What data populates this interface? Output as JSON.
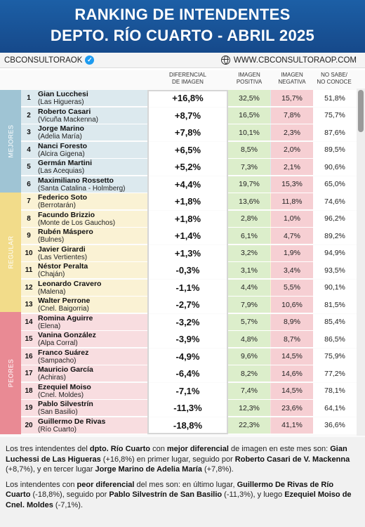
{
  "header": {
    "title_line1": "RANKING DE INTENDENTES",
    "title_line2": "DEPTO. RÍO CUARTO - ABRIL 2025"
  },
  "brand": {
    "left": "CBCONSULTORAOK",
    "right": "WWW.CBCONSULTORAOP.COM",
    "left_icon": "verified-check-icon",
    "right_icon": "globe-icon"
  },
  "columns": {
    "diff_l1": "DIFERENCIAL",
    "diff_l2": "DE IMAGEN",
    "pos_l1": "IMAGEN",
    "pos_l2": "POSITIVA",
    "neg_l1": "IMAGEN",
    "neg_l2": "NEGATIVA",
    "ns_l1": "NO SABE/",
    "ns_l2": "NO CONOCE"
  },
  "groups": {
    "mejores": "MEJORES",
    "regular": "REGULAR",
    "peores": "PEORES"
  },
  "colors": {
    "mejores": "#9fc4d4",
    "regular": "#f2dc8a",
    "peores": "#e98a94",
    "mejores_bg": "#dce9ee",
    "regular_bg": "#faf2d4",
    "peores_bg": "#f8dde0",
    "positive": "#dceecb",
    "negative": "#f6cfd3"
  },
  "rows": [
    {
      "rank": "1",
      "name": "Gian Lucchesi",
      "loc": "(Las Higueras)",
      "diff": "+16,8%",
      "pos": "32,5%",
      "neg": "15,7%",
      "ns": "51,8%"
    },
    {
      "rank": "2",
      "name": "Roberto Casari",
      "loc": "(Vicuña Mackenna)",
      "diff": "+8,7%",
      "pos": "16,5%",
      "neg": "7,8%",
      "ns": "75,7%"
    },
    {
      "rank": "3",
      "name": "Jorge Marino",
      "loc": "(Adelia María)",
      "diff": "+7,8%",
      "pos": "10,1%",
      "neg": "2,3%",
      "ns": "87,6%"
    },
    {
      "rank": "4",
      "name": "Nanci Foresto",
      "loc": "(Alcira Gigena)",
      "diff": "+6,5%",
      "pos": "8,5%",
      "neg": "2,0%",
      "ns": "89,5%"
    },
    {
      "rank": "5",
      "name": "Germán Martini",
      "loc": "(Las Acequias)",
      "diff": "+5,2%",
      "pos": "7,3%",
      "neg": "2,1%",
      "ns": "90,6%"
    },
    {
      "rank": "6",
      "name": "Maximiliano Rossetto",
      "loc": "(Santa Catalina - Holmberg)",
      "diff": "+4,4%",
      "pos": "19,7%",
      "neg": "15,3%",
      "ns": "65,0%"
    },
    {
      "rank": "7",
      "name": "Federico Soto",
      "loc": "(Berrotarán)",
      "diff": "+1,8%",
      "pos": "13,6%",
      "neg": "11,8%",
      "ns": "74,6%"
    },
    {
      "rank": "8",
      "name": "Facundo Brizzio",
      "loc": "(Monte de Los Gauchos)",
      "diff": "+1,8%",
      "pos": "2,8%",
      "neg": "1,0%",
      "ns": "96,2%"
    },
    {
      "rank": "9",
      "name": "Rubén Máspero",
      "loc": "(Bulnes)",
      "diff": "+1,4%",
      "pos": "6,1%",
      "neg": "4,7%",
      "ns": "89,2%"
    },
    {
      "rank": "10",
      "name": "Javier Girardi",
      "loc": "(Las Vertientes)",
      "diff": "+1,3%",
      "pos": "3,2%",
      "neg": "1,9%",
      "ns": "94,9%"
    },
    {
      "rank": "11",
      "name": "Néstor Peralta",
      "loc": "(Chaján)",
      "diff": "-0,3%",
      "pos": "3,1%",
      "neg": "3,4%",
      "ns": "93,5%"
    },
    {
      "rank": "12",
      "name": "Leonardo Cravero",
      "loc": "(Malena)",
      "diff": "-1,1%",
      "pos": "4,4%",
      "neg": "5,5%",
      "ns": "90,1%"
    },
    {
      "rank": "13",
      "name": "Walter Perrone",
      "loc": "(Cnel. Baigorria)",
      "diff": "-2,7%",
      "pos": "7,9%",
      "neg": "10,6%",
      "ns": "81,5%"
    },
    {
      "rank": "14",
      "name": "Romina Aguirre",
      "loc": "(Elena)",
      "diff": "-3,2%",
      "pos": "5,7%",
      "neg": "8,9%",
      "ns": "85,4%"
    },
    {
      "rank": "15",
      "name": "Vanina González",
      "loc": "(Alpa Corral)",
      "diff": "-3,9%",
      "pos": "4,8%",
      "neg": "8,7%",
      "ns": "86,5%"
    },
    {
      "rank": "16",
      "name": "Franco Suárez",
      "loc": "(Sampacho)",
      "diff": "-4,9%",
      "pos": "9,6%",
      "neg": "14,5%",
      "ns": "75,9%"
    },
    {
      "rank": "17",
      "name": "Mauricio García",
      "loc": "(Achiras)",
      "diff": "-6,4%",
      "pos": "8,2%",
      "neg": "14,6%",
      "ns": "77,2%"
    },
    {
      "rank": "18",
      "name": "Ezequiel Moiso",
      "loc": "(Cnel. Moldes)",
      "diff": "-7,1%",
      "pos": "7,4%",
      "neg": "14,5%",
      "ns": "78,1%"
    },
    {
      "rank": "19",
      "name": "Pablo Silvestrín",
      "loc": "(San Basilio)",
      "diff": "-11,3%",
      "pos": "12,3%",
      "neg": "23,6%",
      "ns": "64,1%"
    },
    {
      "rank": "20",
      "name": "Guillermo De Rivas",
      "loc": "(Río Cuarto)",
      "diff": "-18,8%",
      "pos": "22,3%",
      "neg": "41,1%",
      "ns": "36,6%"
    }
  ],
  "footer": {
    "p1": [
      {
        "t": "Los tres intendentes del ",
        "b": false
      },
      {
        "t": "dpto. Río Cuarto",
        "b": true
      },
      {
        "t": " con ",
        "b": false
      },
      {
        "t": "mejor diferencial",
        "b": true
      },
      {
        "t": " de imagen en este mes son: ",
        "b": false
      },
      {
        "t": "Gian Luchessi de Las Higueras",
        "b": true
      },
      {
        "t": " (+16,8%) en primer lugar, seguido por ",
        "b": false
      },
      {
        "t": "Roberto Casari de V. Mackenna",
        "b": true
      },
      {
        "t": " (+8,7%), y en tercer lugar ",
        "b": false
      },
      {
        "t": "Jorge Marino de Adelia María",
        "b": true
      },
      {
        "t": " (+7,8%).",
        "b": false
      }
    ],
    "p2": [
      {
        "t": "Los intendentes con ",
        "b": false
      },
      {
        "t": "peor diferencial",
        "b": true
      },
      {
        "t": " del mes son: en último lugar, ",
        "b": false
      },
      {
        "t": "Guillermo De Rivas de Río Cuarto",
        "b": true
      },
      {
        "t": " (-18,8%), seguido por ",
        "b": false
      },
      {
        "t": "Pablo Silvestrín de San Basilio",
        "b": true
      },
      {
        "t": " (-11,3%), y luego ",
        "b": false
      },
      {
        "t": "Ezequiel Moiso de Cnel. Moldes",
        "b": true
      },
      {
        "t": " (-7,1%).",
        "b": false
      }
    ]
  }
}
